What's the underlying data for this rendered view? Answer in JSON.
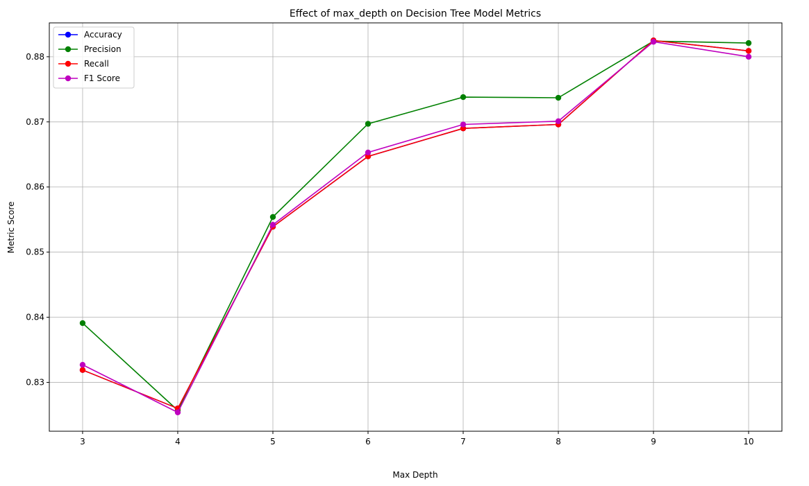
{
  "chart_data": {
    "type": "line",
    "title": "Effect of max_depth on Decision Tree Model Metrics",
    "xlabel": "Max Depth",
    "ylabel": "Metric Score",
    "x": [
      3,
      4,
      5,
      6,
      7,
      8,
      9,
      10
    ],
    "xlim": [
      2.65,
      10.35
    ],
    "ylim": [
      0.8225,
      0.8852
    ],
    "yticks": [
      0.83,
      0.84,
      0.85,
      0.86,
      0.87,
      0.88
    ],
    "ytick_labels": [
      "0.83",
      "0.84",
      "0.85",
      "0.86",
      "0.87",
      "0.88"
    ],
    "xtick_labels": [
      "3",
      "4",
      "5",
      "6",
      "7",
      "8",
      "9",
      "10"
    ],
    "grid": true,
    "legend_position": "upper-left",
    "series": [
      {
        "name": "Accuracy",
        "color": "#0000ff",
        "values": [
          0.8319,
          0.826,
          0.8539,
          0.8647,
          0.869,
          0.8696,
          0.8825,
          0.8809
        ]
      },
      {
        "name": "Precision",
        "color": "#008000",
        "values": [
          0.8391,
          0.8257,
          0.8554,
          0.8697,
          0.8738,
          0.8737,
          0.8824,
          0.8821
        ]
      },
      {
        "name": "Recall",
        "color": "#ff0000",
        "values": [
          0.8319,
          0.826,
          0.8539,
          0.8647,
          0.869,
          0.8696,
          0.8825,
          0.8809
        ]
      },
      {
        "name": "F1 Score",
        "color": "#bf00bf",
        "values": [
          0.8327,
          0.8254,
          0.8542,
          0.8653,
          0.8696,
          0.8701,
          0.8823,
          0.88
        ]
      }
    ]
  }
}
